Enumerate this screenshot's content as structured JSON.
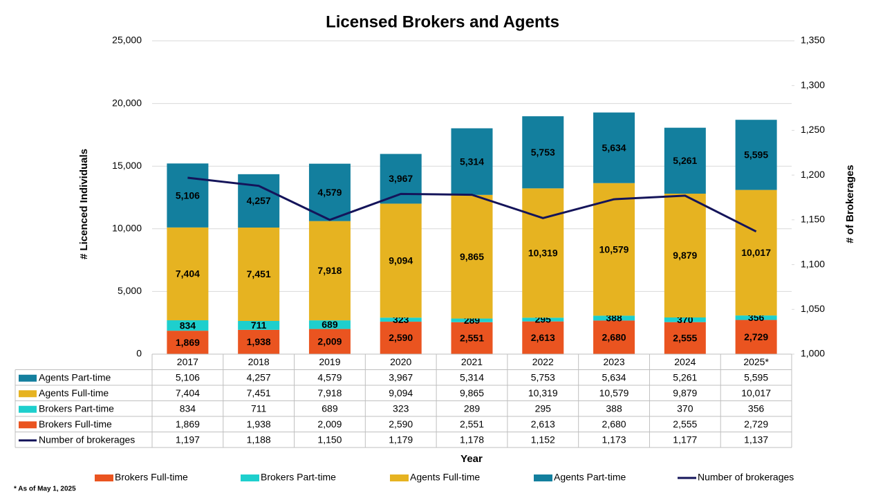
{
  "chart_data": {
    "type": "bar",
    "stacked": true,
    "title": "Licensed Brokers and Agents",
    "xlabel": "Year",
    "ylabel": "# Licenced Individuals",
    "y2label": "# of Brokerages",
    "note": "* As of May 1, 2025",
    "categories": [
      "2017",
      "2018",
      "2019",
      "2020",
      "2021",
      "2022",
      "2023",
      "2024",
      "2025*"
    ],
    "series": [
      {
        "name": "Brokers Full-time",
        "color": "#ea5420",
        "label_color": "#000000",
        "values": [
          1869,
          1938,
          2009,
          2590,
          2551,
          2613,
          2680,
          2555,
          2729
        ],
        "value_labels": [
          "1,869",
          "1,938",
          "2,009",
          "2,590",
          "2,551",
          "2,613",
          "2,680",
          "2,555",
          "2,729"
        ]
      },
      {
        "name": "Brokers Part-time",
        "color": "#1ecfcd",
        "label_color": "#000000",
        "values": [
          834,
          711,
          689,
          323,
          289,
          295,
          388,
          370,
          356
        ]
      },
      {
        "name": "Agents Full-time",
        "color": "#e6b321",
        "label_color": "#000000",
        "values": [
          7404,
          7451,
          7918,
          9094,
          9865,
          10319,
          10579,
          9879,
          10017
        ],
        "value_labels": [
          "7,404",
          "7,451",
          "7,918",
          "9,094",
          "9,865",
          "10,319",
          "10,579",
          "9,879",
          "10,017"
        ]
      },
      {
        "name": "Agents Part-time",
        "color": "#137f9e",
        "label_color": "#ffffff",
        "values": [
          5106,
          4257,
          4579,
          3967,
          5314,
          5753,
          5634,
          5261,
          5595
        ],
        "value_labels": [
          "5,106",
          "4,257",
          "4,579",
          "3,967",
          "5,314",
          "5,753",
          "5,634",
          "5,261",
          "5,595"
        ]
      },
      {
        "name": "Number of brokerages",
        "color": "#14145a",
        "type": "line",
        "axis": "y2",
        "values": [
          1197,
          1188,
          1150,
          1179,
          1178,
          1152,
          1173,
          1177,
          1137
        ],
        "value_labels": [
          "1,197",
          "1,188",
          "1,150",
          "1,179",
          "1,178",
          "1,152",
          "1,173",
          "1,177",
          "1,137"
        ]
      }
    ],
    "ylim": [
      0,
      25000
    ],
    "yticks": [
      0,
      {
        "value": 5000,
        "label": "5,000"
      },
      {
        "value": 10000,
        "label": "10,000"
      },
      {
        "value": 15000,
        "label": "15,000"
      },
      {
        "value": 20000,
        "label": "20,000"
      },
      {
        "value": 25000,
        "label": "25,000"
      }
    ],
    "y2lim": [
      1000,
      1350
    ],
    "y2ticks": [
      {
        "value": 1000,
        "label": "1,000"
      },
      {
        "value": 1050,
        "label": "1,050"
      },
      {
        "value": 1100,
        "label": "1,100"
      },
      {
        "value": 1150,
        "label": "1,150"
      },
      {
        "value": 1200,
        "label": "1,200"
      },
      {
        "value": 1250,
        "label": "1,250"
      },
      {
        "value": 1300,
        "label": "1,300"
      },
      {
        "value": 1350,
        "label": "1,350"
      }
    ],
    "grid": true,
    "data_table": true,
    "legend": "bottom"
  }
}
